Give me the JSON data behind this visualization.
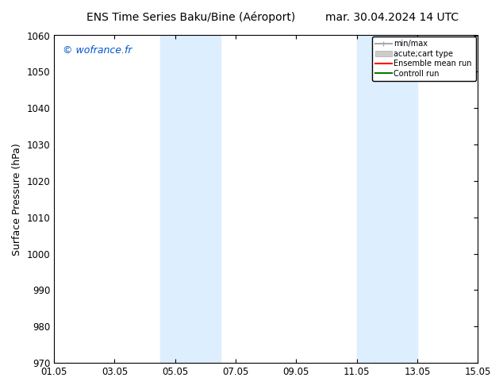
{
  "title_left": "ENS Time Series Baku/Bine (Aéroport)",
  "title_right": "mar. 30.04.2024 14 UTC",
  "ylabel": "Surface Pressure (hPa)",
  "ylim": [
    970,
    1060
  ],
  "yticks": [
    970,
    980,
    990,
    1000,
    1010,
    1020,
    1030,
    1040,
    1050,
    1060
  ],
  "xlim_start": 0,
  "xlim_end": 14,
  "xtick_labels": [
    "01.05",
    "03.05",
    "05.05",
    "07.05",
    "09.05",
    "11.05",
    "13.05",
    "15.05"
  ],
  "xtick_positions": [
    0,
    2,
    4,
    6,
    8,
    10,
    12,
    14
  ],
  "shade_bands": [
    {
      "xmin": 3.5,
      "xmax": 5.5
    },
    {
      "xmin": 10.0,
      "xmax": 12.0
    }
  ],
  "shade_color": "#ddeeff",
  "watermark_text": "© wofrance.fr",
  "watermark_color": "#0055cc",
  "legend_entries": [
    {
      "label": "min/max",
      "color": "#aaaaaa",
      "lw": 1.5
    },
    {
      "label": "acute;cart type",
      "color": "#cccccc",
      "lw": 6
    },
    {
      "label": "Ensemble mean run",
      "color": "red",
      "lw": 1.5
    },
    {
      "label": "Controll run",
      "color": "green",
      "lw": 1.5
    }
  ],
  "bg_color": "#ffffff",
  "grid_color": "#cccccc",
  "title_fontsize": 10,
  "label_fontsize": 9,
  "tick_fontsize": 8.5
}
